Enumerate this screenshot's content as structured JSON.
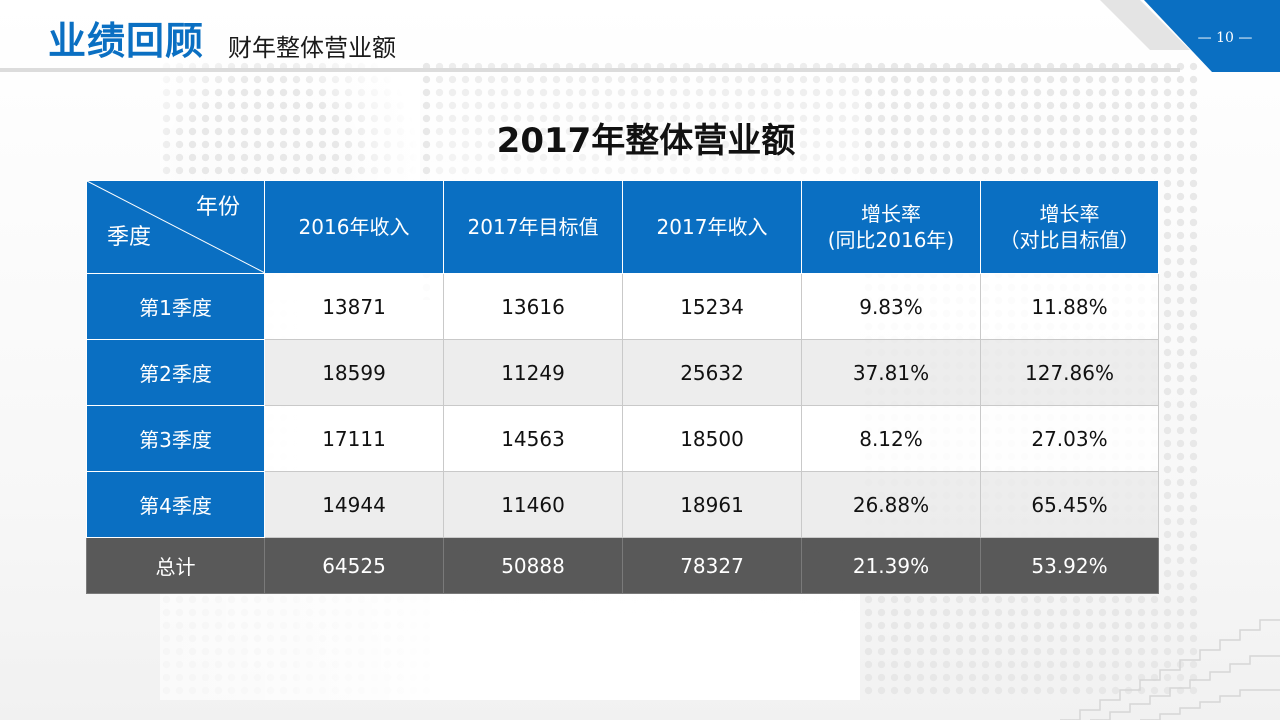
{
  "header": {
    "title": "业绩回顾",
    "subtitle": "财年整体营业额",
    "page_number": "— 10 —"
  },
  "table": {
    "title": "2017年整体营业额",
    "corner_top": "年份",
    "corner_bottom": "季度",
    "columns": [
      {
        "line1": "2016年收入",
        "line2": ""
      },
      {
        "line1": "2017年目标值",
        "line2": ""
      },
      {
        "line1": "2017年收入",
        "line2": ""
      },
      {
        "line1": "增长率",
        "line2": "(同比2016年)"
      },
      {
        "line1": "增长率",
        "line2": "（对比目标值）"
      }
    ],
    "rows": [
      {
        "label": "第1季度",
        "cells": [
          "13871",
          "13616",
          "15234",
          "9.83%",
          "11.88%"
        ]
      },
      {
        "label": "第2季度",
        "cells": [
          "18599",
          "11249",
          "25632",
          "37.81%",
          "127.86%"
        ]
      },
      {
        "label": "第3季度",
        "cells": [
          "17111",
          "14563",
          "18500",
          "8.12%",
          "27.03%"
        ]
      },
      {
        "label": "第4季度",
        "cells": [
          "14944",
          "11460",
          "18961",
          "26.88%",
          "65.45%"
        ]
      }
    ],
    "total": {
      "label": "总计",
      "cells": [
        "64525",
        "50888",
        "78327",
        "21.39%",
        "53.92%"
      ]
    }
  },
  "colors": {
    "brand_blue": "#0a6fc2",
    "total_row": "#595959",
    "header_rule": "#dcdcdc"
  }
}
